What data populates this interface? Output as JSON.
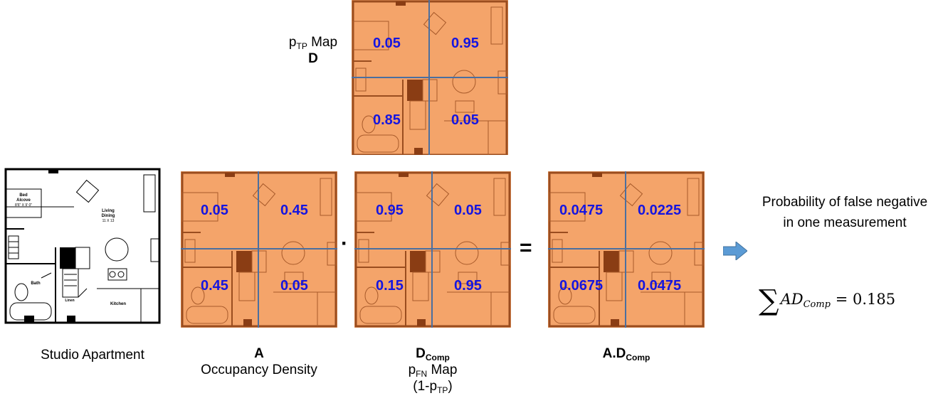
{
  "ptp_map": {
    "title_prefix": "p",
    "title_sub": "TP",
    "title_suffix": "Map",
    "letter": "D",
    "values": [
      "0.05",
      "0.95",
      "0.85",
      "0.05"
    ]
  },
  "studio": {
    "caption": "Studio Apartment",
    "room_labels": [
      "Bed",
      "Alcove",
      "8'6\" X 9' 0\"",
      "Living",
      "Dining",
      "11 X 13",
      "Bath",
      "Linen",
      "Kitchen"
    ]
  },
  "occupancy": {
    "letter": "A",
    "caption": "Occupancy Density",
    "values": [
      "0.05",
      "0.45",
      "0.45",
      "0.05"
    ]
  },
  "dcomp": {
    "letter": "D",
    "letter_sub": "Comp",
    "line2_prefix": "p",
    "line2_sub": "FN",
    "line2_suffix": "Map",
    "line3_prefix": "(1-p",
    "line3_sub": "TP",
    "line3_suffix": ")",
    "values": [
      "0.95",
      "0.05",
      "0.15",
      "0.95"
    ]
  },
  "product": {
    "label": "A.D",
    "label_sub": "Comp",
    "values": [
      "0.0475",
      "0.0225",
      "0.0675",
      "0.0475"
    ]
  },
  "operators": {
    "dot": "·",
    "equals": "="
  },
  "result": {
    "text": "Probability of false negative in one measurement",
    "formula_symbol": "∑",
    "formula_main": "AD",
    "formula_sub": "Comp",
    "formula_value": "= 0.185"
  }
}
